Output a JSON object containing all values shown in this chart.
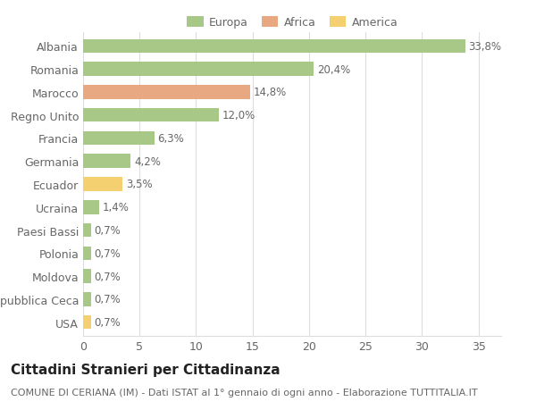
{
  "categories": [
    "Albania",
    "Romania",
    "Marocco",
    "Regno Unito",
    "Francia",
    "Germania",
    "Ecuador",
    "Ucraina",
    "Paesi Bassi",
    "Polonia",
    "Moldova",
    "Repubblica Ceca",
    "USA"
  ],
  "values": [
    33.8,
    20.4,
    14.8,
    12.0,
    6.3,
    4.2,
    3.5,
    1.4,
    0.7,
    0.7,
    0.7,
    0.7,
    0.7
  ],
  "labels": [
    "33,8%",
    "20,4%",
    "14,8%",
    "12,0%",
    "6,3%",
    "4,2%",
    "3,5%",
    "1,4%",
    "0,7%",
    "0,7%",
    "0,7%",
    "0,7%",
    "0,7%"
  ],
  "colors": [
    "#a8c888",
    "#a8c888",
    "#e8a882",
    "#a8c888",
    "#a8c888",
    "#a8c888",
    "#f5d070",
    "#a8c888",
    "#a8c888",
    "#a8c888",
    "#a8c888",
    "#a8c888",
    "#f5d070"
  ],
  "legend": [
    {
      "label": "Europa",
      "color": "#a8c888"
    },
    {
      "label": "Africa",
      "color": "#e8a882"
    },
    {
      "label": "America",
      "color": "#f5d070"
    }
  ],
  "title": "Cittadini Stranieri per Cittadinanza",
  "subtitle": "COMUNE DI CERIANA (IM) - Dati ISTAT al 1° gennaio di ogni anno - Elaborazione TUTTITALIA.IT",
  "xlim": [
    0,
    37
  ],
  "xticks": [
    0,
    5,
    10,
    15,
    20,
    25,
    30,
    35
  ],
  "background_color": "#ffffff",
  "grid_color": "#dddddd",
  "bar_height": 0.6,
  "title_fontsize": 11,
  "subtitle_fontsize": 8,
  "tick_fontsize": 9,
  "label_fontsize": 8.5
}
